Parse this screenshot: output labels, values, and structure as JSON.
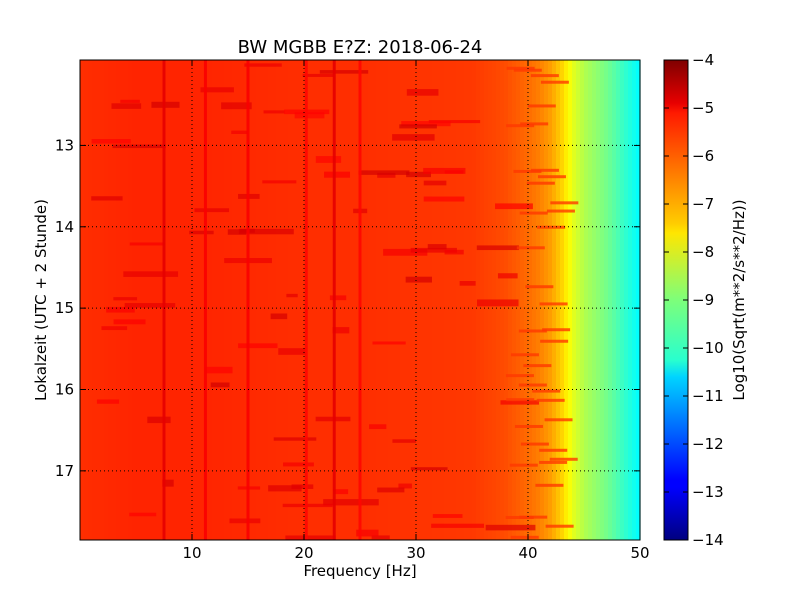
{
  "chart_data": {
    "type": "heatmap",
    "title": "BW MGBB E?Z: 2018-06-24",
    "xlabel": "Frequency [Hz]",
    "ylabel": "Lokalzeit (UTC + 2 Stunde)",
    "xlim": [
      0,
      50
    ],
    "ylim": [
      11.95,
      17.85
    ],
    "y_inverted": true,
    "x_ticks": [
      10,
      20,
      30,
      40,
      50
    ],
    "y_ticks": [
      13,
      14,
      15,
      16,
      17
    ],
    "grid": true,
    "colormap": "jet",
    "colorbar": {
      "label": "Log10(Sqrt(m**2/s**2/Hz))",
      "range": [
        -14,
        -4
      ],
      "ticks": [
        -4,
        -5,
        -6,
        -7,
        -8,
        -9,
        -10,
        -11,
        -12,
        -13,
        -14
      ]
    },
    "spectral_profile": {
      "frequency_hz": [
        0,
        5,
        10,
        15,
        20,
        25,
        30,
        35,
        38,
        40,
        41,
        42,
        43,
        44,
        45,
        46,
        47,
        48,
        49,
        50
      ],
      "level": [
        -5.7,
        -5.6,
        -5.6,
        -5.65,
        -5.7,
        -5.7,
        -5.75,
        -5.8,
        -6.0,
        -6.3,
        -6.5,
        -6.8,
        -7.3,
        -8.0,
        -8.5,
        -8.8,
        -9.1,
        -9.5,
        -9.9,
        -10.3
      ]
    },
    "spectral_lines_hz": [
      {
        "freq": 7.5,
        "level": -5.0
      },
      {
        "freq": 11.2,
        "level": -5.2
      },
      {
        "freq": 15.0,
        "level": -5.2
      },
      {
        "freq": 20.2,
        "level": -5.3
      },
      {
        "freq": 22.7,
        "level": -5.0
      },
      {
        "freq": 25.0,
        "level": -5.3
      }
    ]
  }
}
